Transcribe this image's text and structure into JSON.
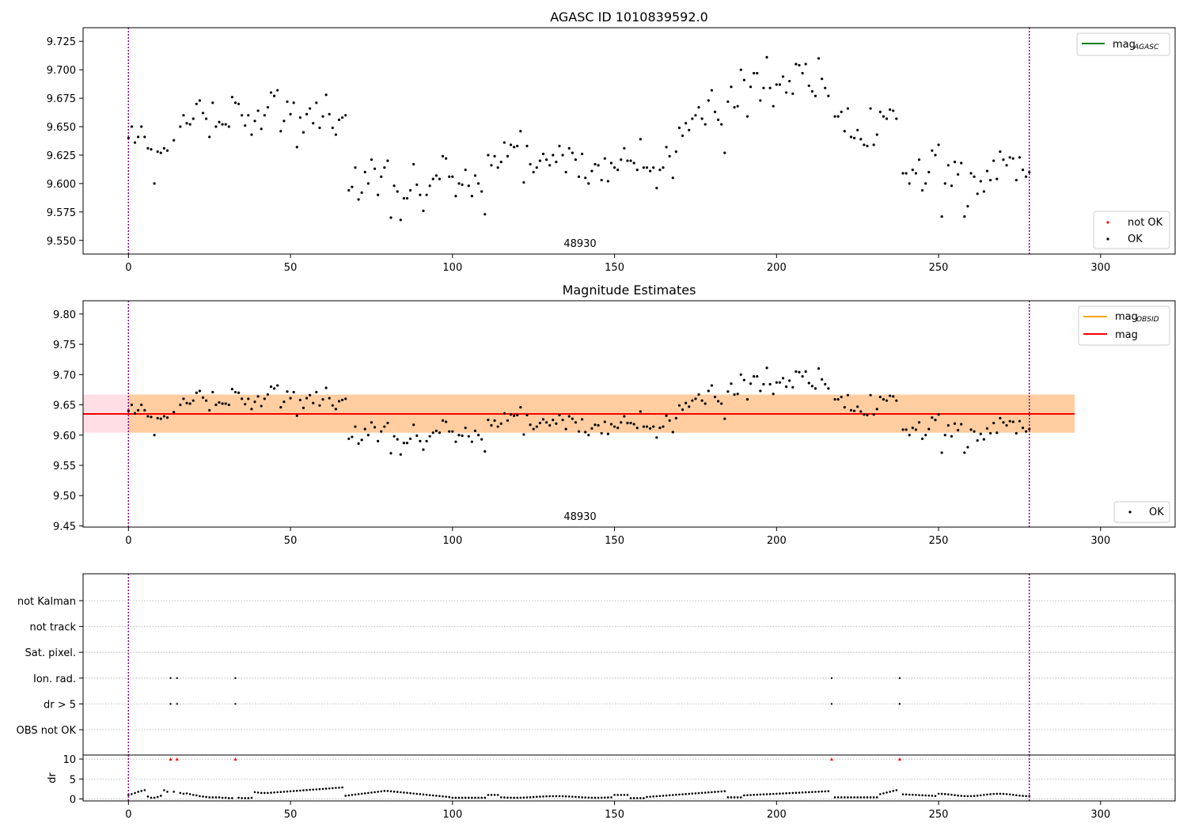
{
  "chart_data": [
    {
      "type": "scatter",
      "title": "AGASC ID 1010839592.0",
      "xlabel": "",
      "ylabel": "",
      "xlim": [
        -14,
        323
      ],
      "ylim": [
        9.538,
        9.737
      ],
      "xticks": [
        0,
        50,
        100,
        150,
        200,
        250,
        300
      ],
      "yticks": [
        9.55,
        9.575,
        9.6,
        9.625,
        9.65,
        9.675,
        9.7,
        9.725
      ],
      "yticklabels": [
        "9.550",
        "9.575",
        "9.600",
        "9.625",
        "9.650",
        "9.675",
        "9.700",
        "9.725"
      ],
      "vlines": [
        0,
        278
      ],
      "vline_color": "#800080",
      "annotation": {
        "text": "48930",
        "x": 139
      },
      "legend_lines": [
        {
          "label_main": "mag",
          "label_sub": "AGASC",
          "color": "#008000"
        }
      ],
      "legend_lines_position": "top-right",
      "legend_markers": [
        {
          "label": "not OK",
          "color": "#ff0000"
        },
        {
          "label": "OK",
          "color": "#000000"
        }
      ],
      "legend_markers_position": "bottom-right",
      "series": [
        {
          "name": "OK",
          "color": "#000000",
          "x": [],
          "y": []
        }
      ]
    },
    {
      "type": "scatter",
      "title": "Magnitude Estimates",
      "xlabel": "",
      "ylabel": "",
      "xlim": [
        -14,
        323
      ],
      "ylim": [
        9.448,
        9.822
      ],
      "xticks": [
        0,
        50,
        100,
        150,
        200,
        250,
        300
      ],
      "yticks": [
        9.45,
        9.5,
        9.55,
        9.6,
        9.65,
        9.7,
        9.75,
        9.8
      ],
      "yticklabels": [
        "9.45",
        "9.50",
        "9.55",
        "9.60",
        "9.65",
        "9.70",
        "9.75",
        "9.80"
      ],
      "vlines": [
        0,
        278
      ],
      "vline_color": "#800080",
      "annotation": {
        "text": "48930",
        "x": 139
      },
      "mag_line": {
        "value": 9.635,
        "x_start": -14,
        "x_end": 292,
        "color": "#ff0000"
      },
      "mag_band": {
        "low": 9.604,
        "high": 9.667,
        "x_start": -14,
        "x_end": 292,
        "color": "#ffc0cb"
      },
      "obsid_band": {
        "low": 9.604,
        "high": 9.667,
        "x_start": 0,
        "x_end": 292,
        "color": "#ffa500"
      },
      "legend_lines": [
        {
          "label_main": "mag",
          "label_sub": "OBSID",
          "color": "#ffa500"
        },
        {
          "label_main": "mag",
          "label_sub": "",
          "color": "#ff0000"
        }
      ],
      "legend_lines_position": "top-right",
      "legend_markers": [
        {
          "label": "OK",
          "color": "#000000"
        }
      ],
      "legend_markers_position": "bottom-right",
      "series": [
        {
          "name": "OK",
          "color": "#000000",
          "x": [],
          "y": []
        }
      ]
    },
    {
      "type": "scatter",
      "title": "",
      "xlim": [
        -14,
        323
      ],
      "categories": [
        "not Kalman",
        "not track",
        "Sat. pixel.",
        "Ion. rad.",
        "dr > 5",
        "OBS not OK"
      ],
      "flags": [
        {
          "category": "Ion. rad.",
          "x": [
            13,
            15,
            33,
            217,
            238
          ]
        },
        {
          "category": "dr > 5",
          "x": [
            13,
            15,
            33,
            217,
            238
          ]
        }
      ],
      "vlines": [
        0,
        278
      ],
      "vline_color": "#800080"
    },
    {
      "type": "scatter",
      "title": "",
      "xlabel": "",
      "ylabel": "dr",
      "xlim": [
        -14,
        323
      ],
      "ylim": [
        -0.5,
        11
      ],
      "xticks": [
        0,
        50,
        100,
        150,
        200,
        250,
        300
      ],
      "yticks": [
        0,
        5,
        10
      ],
      "yticklabels": [
        "0",
        "5",
        "10"
      ],
      "vlines": [
        0,
        278
      ],
      "vline_color": "#800080",
      "capped_markers": {
        "x": [
          13,
          15,
          33,
          217,
          238
        ],
        "y": 10,
        "color": "#ff0000"
      },
      "series": [
        {
          "name": "dr",
          "color": "#000000",
          "x": [],
          "y": []
        }
      ]
    }
  ]
}
